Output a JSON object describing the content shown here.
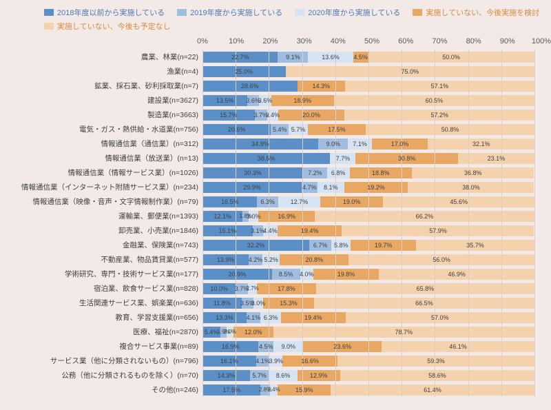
{
  "legend": [
    {
      "label": "2018年度以前から実施している",
      "color": "#5a8fc7"
    },
    {
      "label": "2019年度から実施している",
      "color": "#9fbde0"
    },
    {
      "label": "2020年度から実施している",
      "color": "#d6e3f2"
    },
    {
      "label": "実施していない、今後実施を検討",
      "color": "#e8a864"
    },
    {
      "label": "実施していない、今後も予定なし",
      "color": "#f3d2ad"
    }
  ],
  "colors": {
    "bg": "#f3e9e6",
    "grid": "#d9cfcc",
    "axis_text": "#5a5a5a",
    "label_text": "#404040"
  },
  "axis": {
    "ticks": [
      0,
      10,
      20,
      30,
      40,
      50,
      60,
      70,
      80,
      90,
      100
    ],
    "suffix": "%"
  },
  "label_threshold_pct": 3.0,
  "rows": [
    {
      "label": "農業、林業(n=22)",
      "values": [
        22.7,
        9.1,
        13.6,
        4.5,
        50.0
      ]
    },
    {
      "label": "漁業(n=4)",
      "values": [
        25.0,
        0,
        0,
        0,
        75.0
      ]
    },
    {
      "label": "鉱業、採石業、砂利採取業(n=7)",
      "values": [
        28.6,
        0,
        0,
        14.3,
        57.1
      ]
    },
    {
      "label": "建設業(n=3627)",
      "values": [
        13.5,
        3.6,
        3.6,
        18.9,
        60.5
      ]
    },
    {
      "label": "製造業(n=3663)",
      "values": [
        15.7,
        3.7,
        3.4,
        20.0,
        57.2
      ]
    },
    {
      "label": "電気・ガス・熱供給・水道業(n=756)",
      "values": [
        20.6,
        5.4,
        5.7,
        17.5,
        50.8
      ]
    },
    {
      "label": "情報通信業（通信業）(n=312)",
      "values": [
        34.9,
        9.0,
        7.1,
        17.0,
        32.1
      ]
    },
    {
      "label": "情報通信業（放送業）(n=13)",
      "values": [
        38.5,
        0,
        7.7,
        30.8,
        23.1
      ]
    },
    {
      "label": "情報通信業（情報サービス業）(n=1026)",
      "values": [
        30.3,
        7.2,
        6.8,
        18.8,
        36.8
      ]
    },
    {
      "label": "情報通信業（インターネット附随サービス業）(n=234)",
      "values": [
        29.9,
        4.7,
        8.1,
        19.2,
        38.0
      ]
    },
    {
      "label": "情報通信業（映像・音声・文字情報制作業）(n=79)",
      "values": [
        16.5,
        6.3,
        12.7,
        19.0,
        45.6
      ]
    },
    {
      "label": "運輸業、郵便業(n=1393)",
      "values": [
        12.1,
        1.8,
        3.0,
        16.9,
        66.2
      ]
    },
    {
      "label": "卸売業、小売業(n=1846)",
      "values": [
        15.1,
        3.1,
        4.4,
        19.4,
        57.9
      ]
    },
    {
      "label": "金融業、保険業(n=743)",
      "values": [
        32.2,
        6.7,
        5.8,
        19.7,
        35.7
      ]
    },
    {
      "label": "不動産業、物品賃貸業(n=577)",
      "values": [
        13.9,
        4.2,
        5.2,
        20.8,
        56.0
      ]
    },
    {
      "label": "学術研究、専門・技術サービス業(n=177)",
      "values": [
        20.9,
        8.5,
        4.0,
        19.8,
        46.9
      ]
    },
    {
      "label": "宿泊業、飲食サービス業(n=828)",
      "values": [
        10.0,
        3.7,
        2.7,
        17.8,
        65.8
      ]
    },
    {
      "label": "生活関連サービス業、娯楽業(n=636)",
      "values": [
        11.8,
        3.5,
        3.0,
        15.3,
        66.5
      ]
    },
    {
      "label": "教育、学習支援業(n=656)",
      "values": [
        13.3,
        4.1,
        6.3,
        19.4,
        57.0
      ]
    },
    {
      "label": "医療、福祉(n=2870)",
      "values": [
        5.4,
        1.9,
        2.0,
        12.0,
        78.7
      ]
    },
    {
      "label": "複合サービス事業(n=89)",
      "values": [
        16.9,
        4.5,
        9.0,
        23.6,
        46.1
      ]
    },
    {
      "label": "サービス業（他に分類されないもの）(n=796)",
      "values": [
        16.1,
        4.1,
        3.9,
        16.6,
        59.3
      ]
    },
    {
      "label": "公務（他に分類されるものを除く）(n=70)",
      "values": [
        14.3,
        5.7,
        8.6,
        12.9,
        58.6
      ]
    },
    {
      "label": "その他(n=246)",
      "values": [
        17.5,
        2.8,
        2.4,
        15.9,
        61.4
      ]
    }
  ]
}
